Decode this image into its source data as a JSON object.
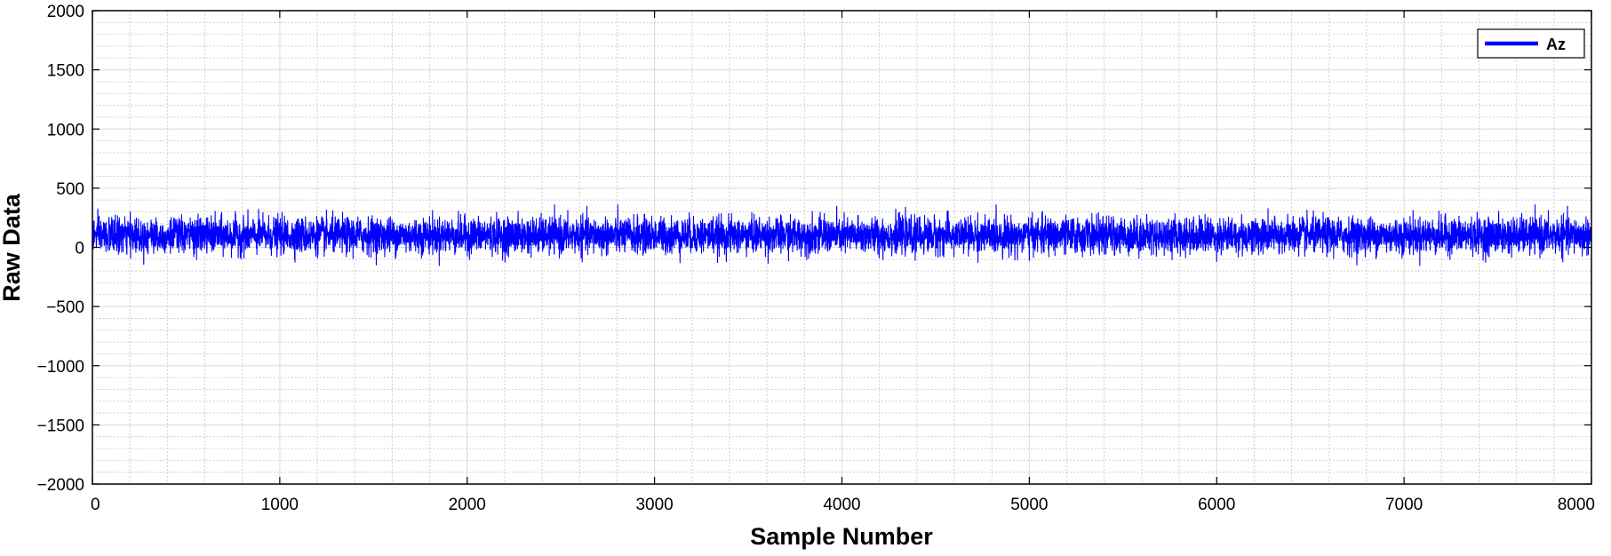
{
  "chart_data": {
    "type": "line",
    "title": "",
    "xlabel": "Sample Number",
    "ylabel": "Raw Data",
    "xlim": [
      0,
      8000
    ],
    "ylim": [
      -2000,
      2000
    ],
    "xticks": [
      0,
      1000,
      2000,
      3000,
      4000,
      5000,
      6000,
      7000,
      8000
    ],
    "yticks": [
      2000,
      1500,
      1000,
      500,
      0,
      -500,
      -1000,
      -1500,
      -2000
    ],
    "xtick_labels": [
      "0",
      "1000",
      "2000",
      "3000",
      "4000",
      "5000",
      "6000",
      "7000",
      "8000"
    ],
    "ytick_labels": [
      "2000",
      "1500",
      "1000",
      "500",
      "0",
      "−500",
      "−1000",
      "−1500",
      "−2000"
    ],
    "grid": "on (major solid, minor dotted)",
    "legend_position": "top-right",
    "series": [
      {
        "name": "Az",
        "color": "#0000ff",
        "sample_count": 8000,
        "mean": 100,
        "typical_range": [
          -50,
          280
        ],
        "min": -160,
        "max": 360
      }
    ]
  }
}
